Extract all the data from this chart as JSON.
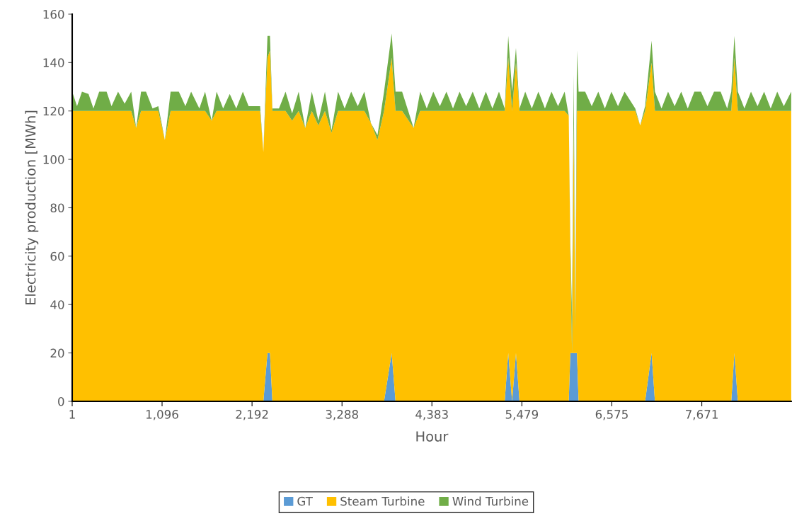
{
  "chart_data": {
    "type": "area",
    "stacked": true,
    "xlabel": "Hour",
    "ylabel": "Electricity production [MWh]",
    "x": [
      1,
      60,
      120,
      200,
      260,
      330,
      420,
      480,
      560,
      640,
      720,
      780,
      840,
      900,
      980,
      1050,
      1130,
      1200,
      1300,
      1380,
      1450,
      1550,
      1620,
      1700,
      1760,
      1840,
      1920,
      2000,
      2080,
      2150,
      2290,
      2330,
      2380,
      2410,
      2440,
      2520,
      2600,
      2680,
      2760,
      2840,
      2920,
      3000,
      3080,
      3160,
      3240,
      3320,
      3400,
      3480,
      3560,
      3640,
      3720,
      3800,
      3893,
      3940,
      4020,
      4160,
      4240,
      4320,
      4400,
      4480,
      4560,
      4640,
      4720,
      4800,
      4880,
      4960,
      5040,
      5120,
      5200,
      5270,
      5313,
      5360,
      5407,
      5450,
      5520,
      5600,
      5680,
      5760,
      5840,
      5920,
      6000,
      6050,
      6070,
      6090,
      6110,
      6130,
      6150,
      6170,
      6250,
      6330,
      6410,
      6490,
      6570,
      6650,
      6730,
      6860,
      6920,
      6980,
      7059,
      7100,
      7180,
      7260,
      7340,
      7420,
      7500,
      7580,
      7660,
      7740,
      7820,
      7900,
      7980,
      8030,
      8068,
      8110,
      8190,
      8270,
      8350,
      8430,
      8510,
      8590,
      8670,
      8760
    ],
    "series": [
      {
        "name": "GT",
        "color": "#5b9bd5",
        "values": [
          0,
          0,
          0,
          0,
          0,
          0,
          0,
          0,
          0,
          0,
          0,
          0,
          0,
          0,
          0,
          0,
          0,
          0,
          0,
          0,
          0,
          0,
          0,
          0,
          0,
          0,
          0,
          0,
          0,
          0,
          0,
          0,
          20,
          20,
          0,
          0,
          0,
          0,
          0,
          0,
          0,
          0,
          0,
          0,
          0,
          0,
          0,
          0,
          0,
          0,
          0,
          0,
          20,
          0,
          0,
          0,
          0,
          0,
          0,
          0,
          0,
          0,
          0,
          0,
          0,
          0,
          0,
          0,
          0,
          0,
          20,
          0,
          20,
          0,
          0,
          0,
          0,
          0,
          0,
          0,
          0,
          0,
          20,
          20,
          20,
          20,
          20,
          0,
          0,
          0,
          0,
          0,
          0,
          0,
          0,
          0,
          0,
          0,
          20,
          0,
          0,
          0,
          0,
          0,
          0,
          0,
          0,
          0,
          0,
          0,
          0,
          0,
          20,
          0,
          0,
          0,
          0,
          0,
          0,
          0,
          0,
          0
        ]
      },
      {
        "name": "Steam Turbine",
        "color": "#ffc000",
        "values": [
          120,
          120,
          120,
          120,
          120,
          120,
          120,
          120,
          120,
          120,
          120,
          113,
          120,
          120,
          120,
          120,
          108,
          120,
          120,
          120,
          120,
          120,
          120,
          116,
          120,
          120,
          120,
          120,
          120,
          120,
          120,
          103,
          122,
          125,
          120,
          120,
          120,
          116,
          120,
          113,
          120,
          114,
          120,
          111,
          120,
          120,
          120,
          120,
          120,
          115,
          108,
          120,
          122,
          120,
          120,
          113,
          120,
          120,
          120,
          120,
          120,
          120,
          120,
          120,
          120,
          120,
          120,
          120,
          120,
          120,
          122,
          120,
          120,
          120,
          120,
          120,
          120,
          120,
          120,
          120,
          120,
          118,
          40,
          0,
          95,
          10,
          100,
          120,
          120,
          120,
          120,
          120,
          120,
          120,
          120,
          120,
          114,
          120,
          120,
          120,
          120,
          120,
          120,
          120,
          120,
          120,
          120,
          120,
          120,
          120,
          120,
          120,
          122,
          120,
          120,
          120,
          120,
          120,
          120,
          120,
          120,
          120
        ]
      },
      {
        "name": "Wind Turbine",
        "color": "#70ad47",
        "values": [
          8,
          2,
          8,
          7,
          1,
          8,
          8,
          2,
          8,
          3,
          8,
          0,
          8,
          8,
          1,
          2,
          0,
          8,
          8,
          2,
          8,
          1,
          8,
          0,
          8,
          1,
          7,
          1,
          8,
          2,
          2,
          0,
          9,
          6,
          1,
          1,
          8,
          3,
          8,
          0,
          8,
          2,
          8,
          1,
          8,
          1,
          8,
          2,
          8,
          0,
          2,
          8,
          10,
          8,
          8,
          0,
          8,
          1,
          8,
          2,
          8,
          1,
          8,
          2,
          8,
          1,
          8,
          1,
          8,
          1,
          9,
          8,
          6,
          1,
          8,
          1,
          8,
          1,
          8,
          2,
          8,
          0,
          5,
          15,
          20,
          5,
          25,
          8,
          8,
          2,
          8,
          1,
          8,
          2,
          8,
          1,
          0,
          2,
          9,
          8,
          1,
          8,
          2,
          8,
          1,
          8,
          8,
          2,
          8,
          8,
          1,
          8,
          9,
          8,
          1,
          8,
          2,
          8,
          1,
          8,
          2,
          8
        ]
      }
    ],
    "xlim": [
      1,
      8760
    ],
    "xticks": [
      {
        "value": 1,
        "label": "1"
      },
      {
        "value": 1096,
        "label": "1,096"
      },
      {
        "value": 2192,
        "label": "2,192"
      },
      {
        "value": 3288,
        "label": "3,288"
      },
      {
        "value": 4383,
        "label": "4,383"
      },
      {
        "value": 5479,
        "label": "5,479"
      },
      {
        "value": 6575,
        "label": "6,575"
      },
      {
        "value": 7671,
        "label": "7,671"
      }
    ],
    "ylim": [
      0,
      160
    ],
    "yticks": [
      0,
      20,
      40,
      60,
      80,
      100,
      120,
      140,
      160
    ],
    "grid": false,
    "legend": "bottom"
  }
}
